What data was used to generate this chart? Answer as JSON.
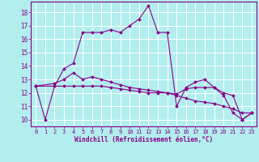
{
  "xlabel": "Windchill (Refroidissement éolien,°C)",
  "xlim": [
    -0.5,
    23.5
  ],
  "ylim": [
    9.5,
    18.8
  ],
  "xticks": [
    0,
    1,
    2,
    3,
    4,
    5,
    6,
    7,
    8,
    9,
    10,
    11,
    12,
    13,
    14,
    15,
    16,
    17,
    18,
    19,
    20,
    21,
    22,
    23
  ],
  "yticks": [
    10,
    11,
    12,
    13,
    14,
    15,
    16,
    17,
    18
  ],
  "background_color": "#b2eeee",
  "grid_color": "#ffffff",
  "line_color": "#880088",
  "lines": [
    {
      "x": [
        0,
        1,
        2,
        3,
        4,
        5,
        6,
        7,
        8,
        9,
        10,
        11,
        12,
        13,
        14,
        15,
        16,
        17,
        18,
        19,
        20,
        21,
        22,
        23
      ],
      "y": [
        12.5,
        10.0,
        12.5,
        13.8,
        14.2,
        16.5,
        16.5,
        16.5,
        16.7,
        16.5,
        17.0,
        17.5,
        18.5,
        16.5,
        16.5,
        11.0,
        12.4,
        12.8,
        13.0,
        12.4,
        11.8,
        10.5,
        10.0,
        10.5
      ]
    },
    {
      "x": [
        0,
        2,
        3,
        4,
        5,
        6,
        7,
        8,
        9,
        10,
        11,
        12,
        13,
        14,
        15,
        16,
        17,
        18,
        19,
        20,
        21,
        22,
        23
      ],
      "y": [
        12.5,
        12.5,
        12.5,
        12.5,
        12.5,
        12.5,
        12.5,
        12.4,
        12.3,
        12.2,
        12.1,
        12.0,
        12.0,
        12.0,
        11.9,
        12.3,
        12.4,
        12.4,
        12.4,
        12.0,
        11.8,
        10.0,
        10.5
      ]
    },
    {
      "x": [
        0,
        2,
        3,
        4,
        5,
        6,
        7,
        8,
        9,
        10,
        11,
        12,
        13,
        14,
        15,
        16,
        17,
        18,
        19,
        20,
        21,
        22,
        23
      ],
      "y": [
        12.5,
        12.7,
        13.0,
        13.5,
        13.0,
        13.2,
        13.0,
        12.8,
        12.6,
        12.4,
        12.3,
        12.2,
        12.1,
        12.0,
        11.8,
        11.6,
        11.4,
        11.3,
        11.2,
        11.0,
        10.8,
        10.5,
        10.5
      ]
    }
  ]
}
